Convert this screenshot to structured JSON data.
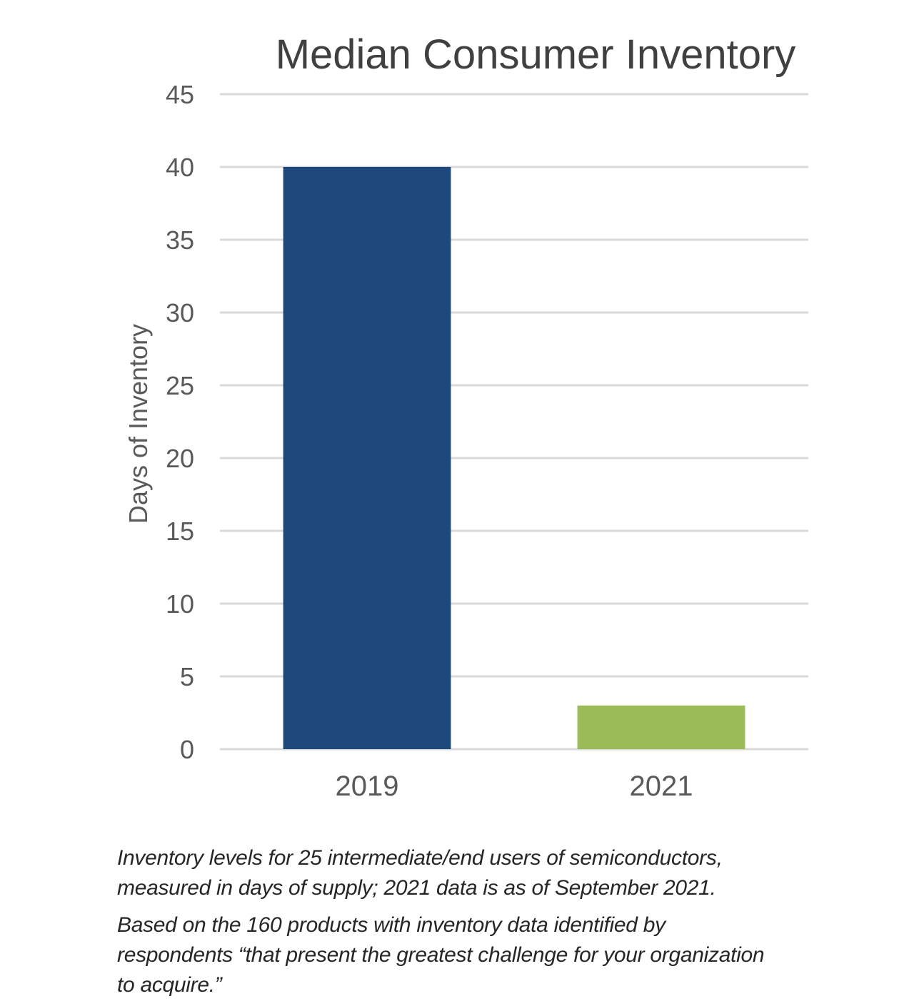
{
  "chart_data": {
    "type": "bar",
    "title": "Median Consumer Inventory",
    "xlabel": "",
    "ylabel": "Days of Inventory",
    "categories": [
      "2019",
      "2021"
    ],
    "values": [
      40,
      3
    ],
    "ylim": [
      0,
      45
    ],
    "yticks": [
      0,
      5,
      10,
      15,
      20,
      25,
      30,
      35,
      40,
      45
    ],
    "bar_colors": [
      "#1f497d",
      "#9bbb59"
    ],
    "grid": true,
    "legend": "none"
  },
  "footnote": {
    "paragraph1": [
      "Inventory levels for 25 intermediate/end users of semiconductors,",
      "measured in days of supply; 2021 data is as of September 2021."
    ],
    "paragraph2": [
      "Based on the 160 products with inventory data identified by",
      "respondents “that present the greatest challenge for your organization",
      "to acquire.”"
    ]
  }
}
